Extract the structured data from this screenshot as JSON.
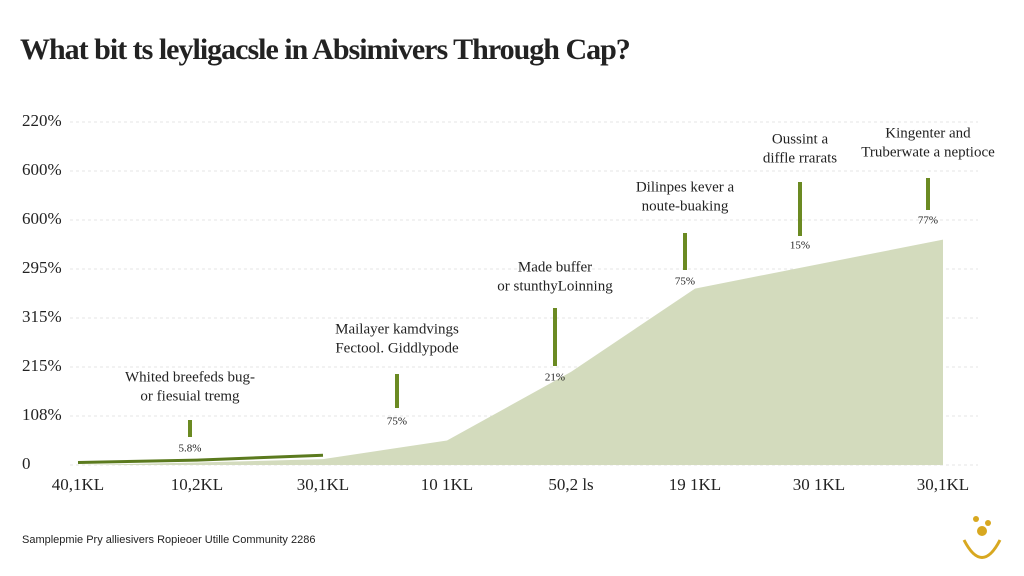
{
  "chart_data": {
    "type": "area",
    "title": "What bit ts leyligacsle in Absimivers Through Cap?",
    "source": "Samplepmie Pry alliesivers Ropieoer Utille Community 2286",
    "categories": [
      "40,1KL",
      "10,2KL",
      "30,1KL",
      "10 1KL",
      "50,2 ls",
      "19 1KL",
      "30 1KL",
      "30,1KL"
    ],
    "series": [
      {
        "color": "#d3dbbd",
        "values": [
          0,
          0.05,
          0.12,
          0.5,
          1.9,
          3.6,
          4.1,
          4.6
        ]
      },
      {
        "color": "#5b7a1e",
        "values": [
          0.05,
          0.1,
          0.2,
          null,
          null,
          null,
          null,
          null
        ]
      }
    ],
    "ylim": [
      0,
      7
    ],
    "yticks": [
      {
        "value": 0,
        "label": "0"
      },
      {
        "value": 1,
        "label": "108%"
      },
      {
        "value": 2,
        "label": "215%"
      },
      {
        "value": 3,
        "label": "315%"
      },
      {
        "value": 4,
        "label": "295%"
      },
      {
        "value": 5,
        "label": "600%"
      },
      {
        "value": 6,
        "label": "600%"
      },
      {
        "value": 7,
        "label": "220%"
      }
    ],
    "grid": true,
    "annotations": [
      {
        "lines": [
          "Whited breefeds bug-",
          "or fiesuial tremg"
        ],
        "label": "5.8%"
      },
      {
        "lines": [
          "Mailayer kamdvings",
          "Fectool. Giddlypode"
        ],
        "label": "75%"
      },
      {
        "lines": [
          "Made buffer",
          "or stunthyLoinning"
        ],
        "label": "21%"
      },
      {
        "lines": [
          "Dilinpes kever a",
          "noute-buaking"
        ],
        "label": "75%"
      },
      {
        "lines": [
          "Oussint a",
          "diffle rrarats"
        ],
        "label": "15%"
      },
      {
        "lines": [
          "Kingenter and",
          "Truberwate a neptioce"
        ],
        "label": "77%"
      }
    ]
  }
}
